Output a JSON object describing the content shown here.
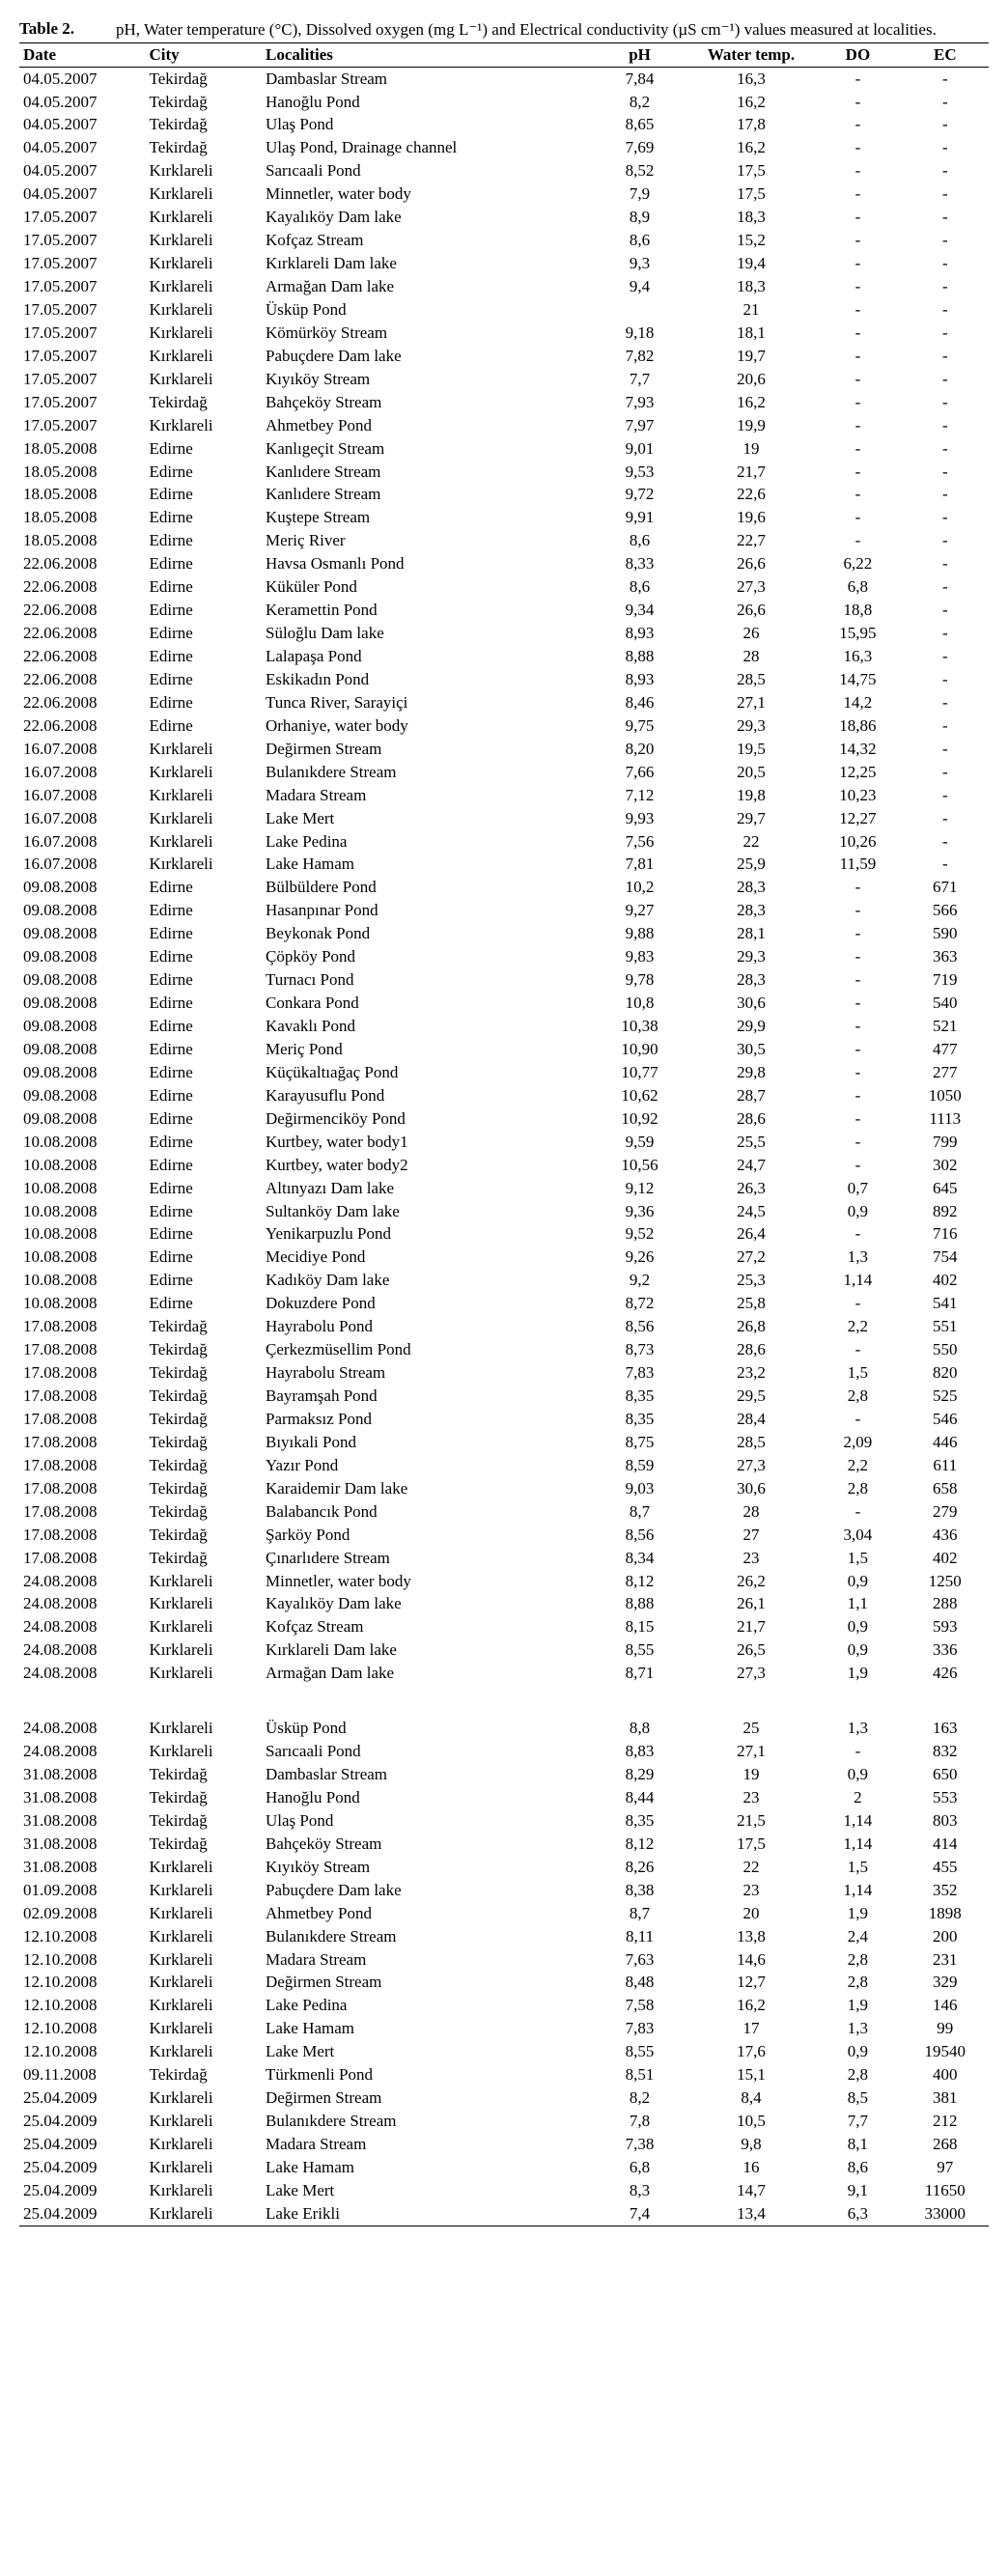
{
  "caption": {
    "label": "Table 2.",
    "text": "pH, Water temperature (°C), Dissolved oxygen (mg L⁻¹) and Electrical conductivity (µS cm⁻¹) values measured at localities."
  },
  "columns": [
    "Date",
    "City",
    "Localities",
    "pH",
    "Water temp.",
    "DO",
    "EC"
  ],
  "rows": [
    [
      "04.05.2007",
      "Tekirdağ",
      "Dambaslar Stream",
      "7,84",
      "16,3",
      "-",
      "-"
    ],
    [
      "04.05.2007",
      "Tekirdağ",
      "Hanoğlu Pond",
      "8,2",
      "16,2",
      "-",
      "-"
    ],
    [
      "04.05.2007",
      "Tekirdağ",
      "Ulaş Pond",
      "8,65",
      "17,8",
      "-",
      "-"
    ],
    [
      "04.05.2007",
      "Tekirdağ",
      "Ulaş Pond, Drainage channel",
      "7,69",
      "16,2",
      "-",
      "-"
    ],
    [
      "04.05.2007",
      "Kırklareli",
      "Sarıcaali Pond",
      "8,52",
      "17,5",
      "-",
      "-"
    ],
    [
      "04.05.2007",
      "Kırklareli",
      "Minnetler, water body",
      "7,9",
      "17,5",
      "-",
      "-"
    ],
    [
      "17.05.2007",
      "Kırklareli",
      "Kayalıköy Dam lake",
      "8,9",
      "18,3",
      "-",
      "-"
    ],
    [
      "17.05.2007",
      "Kırklareli",
      "Kofçaz Stream",
      "8,6",
      "15,2",
      "-",
      "-"
    ],
    [
      "17.05.2007",
      "Kırklareli",
      "Kırklareli Dam lake",
      "9,3",
      "19,4",
      "-",
      "-"
    ],
    [
      "17.05.2007",
      "Kırklareli",
      "Armağan Dam lake",
      "9,4",
      "18,3",
      "-",
      "-"
    ],
    [
      "17.05.2007",
      "Kırklareli",
      "Üsküp Pond",
      "",
      "21",
      "-",
      "-"
    ],
    [
      "17.05.2007",
      "Kırklareli",
      "Kömürköy Stream",
      "9,18",
      "18,1",
      "-",
      "-"
    ],
    [
      "17.05.2007",
      "Kırklareli",
      "Pabuçdere Dam lake",
      "7,82",
      "19,7",
      "-",
      "-"
    ],
    [
      "17.05.2007",
      "Kırklareli",
      "Kıyıköy Stream",
      "7,7",
      "20,6",
      "-",
      "-"
    ],
    [
      "17.05.2007",
      "Tekirdağ",
      "Bahçeköy Stream",
      "7,93",
      "16,2",
      "-",
      "-"
    ],
    [
      "17.05.2007",
      "Kırklareli",
      "Ahmetbey Pond",
      "7,97",
      "19,9",
      "-",
      "-"
    ],
    [
      "18.05.2008",
      "Edirne",
      "Kanlıgeçit Stream",
      "9,01",
      "19",
      "-",
      "-"
    ],
    [
      "18.05.2008",
      "Edirne",
      "Kanlıdere Stream",
      "9,53",
      "21,7",
      "-",
      "-"
    ],
    [
      "18.05.2008",
      "Edirne",
      "Kanlıdere Stream",
      "9,72",
      "22,6",
      "-",
      "-"
    ],
    [
      "18.05.2008",
      "Edirne",
      "Kuştepe Stream",
      "9,91",
      "19,6",
      "-",
      "-"
    ],
    [
      "18.05.2008",
      "Edirne",
      "Meriç River",
      "8,6",
      "22,7",
      "-",
      "-"
    ],
    [
      "22.06.2008",
      "Edirne",
      "Havsa Osmanlı Pond",
      "8,33",
      "26,6",
      "6,22",
      "-"
    ],
    [
      "22.06.2008",
      "Edirne",
      "Küküler Pond",
      "8,6",
      "27,3",
      "6,8",
      "-"
    ],
    [
      "22.06.2008",
      "Edirne",
      "Keramettin Pond",
      "9,34",
      "26,6",
      "18,8",
      "-"
    ],
    [
      "22.06.2008",
      "Edirne",
      "Süloğlu Dam lake",
      "8,93",
      "26",
      "15,95",
      "-"
    ],
    [
      "22.06.2008",
      "Edirne",
      "Lalapaşa Pond",
      "8,88",
      "28",
      "16,3",
      "-"
    ],
    [
      "22.06.2008",
      "Edirne",
      "Eskikadın Pond",
      "8,93",
      "28,5",
      "14,75",
      "-"
    ],
    [
      "22.06.2008",
      "Edirne",
      "Tunca River, Sarayiçi",
      "8,46",
      "27,1",
      "14,2",
      "-"
    ],
    [
      "22.06.2008",
      "Edirne",
      "Orhaniye, water body",
      "9,75",
      "29,3",
      "18,86",
      "-"
    ],
    [
      "16.07.2008",
      "Kırklareli",
      "Değirmen Stream",
      "8,20",
      "19,5",
      "14,32",
      "-"
    ],
    [
      "16.07.2008",
      "Kırklareli",
      "Bulanıkdere Stream",
      "7,66",
      "20,5",
      "12,25",
      "-"
    ],
    [
      "16.07.2008",
      "Kırklareli",
      "Madara Stream",
      "7,12",
      "19,8",
      "10,23",
      "-"
    ],
    [
      "16.07.2008",
      "Kırklareli",
      "Lake Mert",
      "9,93",
      "29,7",
      "12,27",
      "-"
    ],
    [
      "16.07.2008",
      "Kırklareli",
      "Lake Pedina",
      "7,56",
      "22",
      "10,26",
      "-"
    ],
    [
      "16.07.2008",
      "Kırklareli",
      "Lake Hamam",
      "7,81",
      "25,9",
      "11,59",
      "-"
    ],
    [
      "09.08.2008",
      "Edirne",
      "Bülbüldere Pond",
      "10,2",
      "28,3",
      "-",
      "671"
    ],
    [
      "09.08.2008",
      "Edirne",
      "Hasanpınar Pond",
      "9,27",
      "28,3",
      "-",
      "566"
    ],
    [
      "09.08.2008",
      "Edirne",
      "Beykonak Pond",
      "9,88",
      "28,1",
      "-",
      "590"
    ],
    [
      "09.08.2008",
      "Edirne",
      "Çöpköy Pond",
      "9,83",
      "29,3",
      "-",
      "363"
    ],
    [
      "09.08.2008",
      "Edirne",
      "Turnacı Pond",
      "9,78",
      "28,3",
      "-",
      "719"
    ],
    [
      "09.08.2008",
      "Edirne",
      "Conkara Pond",
      "10,8",
      "30,6",
      "-",
      "540"
    ],
    [
      "09.08.2008",
      "Edirne",
      "Kavaklı Pond",
      "10,38",
      "29,9",
      "-",
      "521"
    ],
    [
      "09.08.2008",
      "Edirne",
      "Meriç Pond",
      "10,90",
      "30,5",
      "-",
      "477"
    ],
    [
      "09.08.2008",
      "Edirne",
      "Küçükaltıağaç Pond",
      "10,77",
      "29,8",
      "-",
      "277"
    ],
    [
      "09.08.2008",
      "Edirne",
      "Karayusuflu Pond",
      "10,62",
      "28,7",
      "-",
      "1050"
    ],
    [
      "09.08.2008",
      "Edirne",
      "Değirmenciköy Pond",
      "10,92",
      "28,6",
      "-",
      "1113"
    ],
    [
      "10.08.2008",
      "Edirne",
      "Kurtbey, water body1",
      "9,59",
      "25,5",
      "-",
      "799"
    ],
    [
      "10.08.2008",
      "Edirne",
      "Kurtbey, water body2",
      "10,56",
      "24,7",
      "-",
      "302"
    ],
    [
      "10.08.2008",
      "Edirne",
      "Altınyazı Dam lake",
      "9,12",
      "26,3",
      "0,7",
      "645"
    ],
    [
      "10.08.2008",
      "Edirne",
      "Sultanköy Dam lake",
      "9,36",
      "24,5",
      "0,9",
      "892"
    ],
    [
      "10.08.2008",
      "Edirne",
      "Yenikarpuzlu Pond",
      "9,52",
      "26,4",
      "-",
      "716"
    ],
    [
      "10.08.2008",
      "Edirne",
      "Mecidiye Pond",
      "9,26",
      "27,2",
      "1,3",
      "754"
    ],
    [
      "10.08.2008",
      "Edirne",
      "Kadıköy Dam lake",
      "9,2",
      "25,3",
      "1,14",
      "402"
    ],
    [
      "10.08.2008",
      "Edirne",
      "Dokuzdere Pond",
      "8,72",
      "25,8",
      "-",
      "541"
    ],
    [
      "17.08.2008",
      "Tekirdağ",
      "Hayrabolu Pond",
      "8,56",
      "26,8",
      "2,2",
      "551"
    ],
    [
      "17.08.2008",
      "Tekirdağ",
      "Çerkezmüsellim Pond",
      "8,73",
      "28,6",
      "-",
      "550"
    ],
    [
      "17.08.2008",
      "Tekirdağ",
      "Hayrabolu Stream",
      "7,83",
      "23,2",
      "1,5",
      "820"
    ],
    [
      "17.08.2008",
      "Tekirdağ",
      "Bayramşah Pond",
      "8,35",
      "29,5",
      "2,8",
      "525"
    ],
    [
      "17.08.2008",
      "Tekirdağ",
      "Parmaksız Pond",
      "8,35",
      "28,4",
      "-",
      "546"
    ],
    [
      "17.08.2008",
      "Tekirdağ",
      "Bıyıkali Pond",
      "8,75",
      "28,5",
      "2,09",
      "446"
    ],
    [
      "17.08.2008",
      "Tekirdağ",
      "Yazır Pond",
      "8,59",
      "27,3",
      "2,2",
      "611"
    ],
    [
      "17.08.2008",
      "Tekirdağ",
      "Karaidemir Dam lake",
      "9,03",
      "30,6",
      "2,8",
      "658"
    ],
    [
      "17.08.2008",
      "Tekirdağ",
      "Balabancık Pond",
      "8,7",
      "28",
      "-",
      "279"
    ],
    [
      "17.08.2008",
      "Tekirdağ",
      "Şarköy Pond",
      "8,56",
      "27",
      "3,04",
      "436"
    ],
    [
      "17.08.2008",
      "Tekirdağ",
      "Çınarlıdere Stream",
      "8,34",
      "23",
      "1,5",
      "402"
    ],
    [
      "24.08.2008",
      "Kırklareli",
      "Minnetler, water body",
      "8,12",
      "26,2",
      "0,9",
      "1250"
    ],
    [
      "24.08.2008",
      "Kırklareli",
      "Kayalıköy Dam lake",
      "8,88",
      "26,1",
      "1,1",
      "288"
    ],
    [
      "24.08.2008",
      "Kırklareli",
      "Kofçaz Stream",
      "8,15",
      "21,7",
      "0,9",
      "593"
    ],
    [
      "24.08.2008",
      "Kırklareli",
      "Kırklareli Dam lake",
      "8,55",
      "26,5",
      "0,9",
      "336"
    ],
    [
      "24.08.2008",
      "Kırklareli",
      "Armağan Dam lake",
      "8,71",
      "27,3",
      "1,9",
      "426"
    ],
    [
      "SPACER",
      "",
      "",
      "",
      "",
      "",
      ""
    ],
    [
      "24.08.2008",
      "Kırklareli",
      "Üsküp Pond",
      "8,8",
      "25",
      "1,3",
      "163"
    ],
    [
      "24.08.2008",
      "Kırklareli",
      "Sarıcaali Pond",
      "8,83",
      "27,1",
      "-",
      "832"
    ],
    [
      "31.08.2008",
      "Tekirdağ",
      "Dambaslar Stream",
      "8,29",
      "19",
      "0,9",
      "650"
    ],
    [
      "31.08.2008",
      "Tekirdağ",
      "Hanoğlu Pond",
      "8,44",
      "23",
      "2",
      "553"
    ],
    [
      "31.08.2008",
      "Tekirdağ",
      "Ulaş Pond",
      "8,35",
      "21,5",
      "1,14",
      "803"
    ],
    [
      "31.08.2008",
      "Tekirdağ",
      "Bahçeköy Stream",
      "8,12",
      "17,5",
      "1,14",
      "414"
    ],
    [
      "31.08.2008",
      "Kırklareli",
      "Kıyıköy Stream",
      "8,26",
      "22",
      "1,5",
      "455"
    ],
    [
      "01.09.2008",
      "Kırklareli",
      "Pabuçdere Dam lake",
      "8,38",
      "23",
      "1,14",
      "352"
    ],
    [
      "02.09.2008",
      "Kırklareli",
      "Ahmetbey Pond",
      "8,7",
      "20",
      "1,9",
      "1898"
    ],
    [
      "12.10.2008",
      "Kırklareli",
      "Bulanıkdere Stream",
      "8,11",
      "13,8",
      "2,4",
      "200"
    ],
    [
      "12.10.2008",
      "Kırklareli",
      "Madara Stream",
      "7,63",
      "14,6",
      "2,8",
      "231"
    ],
    [
      "12.10.2008",
      "Kırklareli",
      "Değirmen Stream",
      "8,48",
      "12,7",
      "2,8",
      "329"
    ],
    [
      "12.10.2008",
      "Kırklareli",
      "Lake Pedina",
      "7,58",
      "16,2",
      "1,9",
      "146"
    ],
    [
      "12.10.2008",
      "Kırklareli",
      "Lake Hamam",
      "7,83",
      "17",
      "1,3",
      "99"
    ],
    [
      "12.10.2008",
      "Kırklareli",
      "Lake Mert",
      "8,55",
      "17,6",
      "0,9",
      "19540"
    ],
    [
      "09.11.2008",
      "Tekirdağ",
      "Türkmenli Pond",
      "8,51",
      "15,1",
      "2,8",
      "400"
    ],
    [
      "25.04.2009",
      "Kırklareli",
      "Değirmen Stream",
      "8,2",
      "8,4",
      "8,5",
      "381"
    ],
    [
      "25.04.2009",
      "Kırklareli",
      "Bulanıkdere Stream",
      "7,8",
      "10,5",
      "7,7",
      "212"
    ],
    [
      "25.04.2009",
      "Kırklareli",
      "Madara Stream",
      "7,38",
      "9,8",
      "8,1",
      "268"
    ],
    [
      "25.04.2009",
      "Kırklareli",
      "Lake Hamam",
      "6,8",
      "16",
      "8,6",
      "97"
    ],
    [
      "25.04.2009",
      "Kırklareli",
      "Lake Mert",
      "8,3",
      "14,7",
      "9,1",
      "11650"
    ],
    [
      "25.04.2009",
      "Kırklareli",
      "Lake Erikli",
      "7,4",
      "13,4",
      "6,3",
      "33000"
    ]
  ],
  "styles": {
    "font_family": "Times New Roman",
    "text_color": "#000000",
    "background": "#ffffff",
    "border_color": "#000000",
    "caption_fontsize": 17,
    "table_fontsize": 17
  }
}
